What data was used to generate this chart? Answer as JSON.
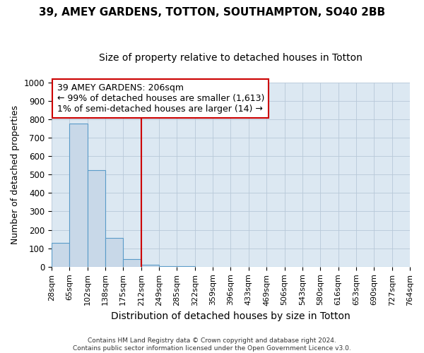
{
  "title1": "39, AMEY GARDENS, TOTTON, SOUTHAMPTON, SO40 2BB",
  "title2": "Size of property relative to detached houses in Totton",
  "xlabel": "Distribution of detached houses by size in Totton",
  "ylabel": "Number of detached properties",
  "footer1": "Contains HM Land Registry data © Crown copyright and database right 2024.",
  "footer2": "Contains public sector information licensed under the Open Government Licence v3.0.",
  "bin_labels": [
    "28sqm",
    "65sqm",
    "102sqm",
    "138sqm",
    "175sqm",
    "212sqm",
    "249sqm",
    "285sqm",
    "322sqm",
    "359sqm",
    "396sqm",
    "433sqm",
    "469sqm",
    "506sqm",
    "543sqm",
    "580sqm",
    "616sqm",
    "653sqm",
    "690sqm",
    "727sqm",
    "764sqm"
  ],
  "bar_values": [
    130,
    775,
    525,
    155,
    40,
    10,
    5,
    2,
    1,
    1,
    0,
    1,
    0,
    0,
    0,
    0,
    0,
    0,
    0,
    0
  ],
  "bar_color": "#c8d8e8",
  "bar_edge_color": "#5a9bc8",
  "red_line_index": 5,
  "annotation_line1": "39 AMEY GARDENS: 206sqm",
  "annotation_line2": "← 99% of detached houses are smaller (1,613)",
  "annotation_line3": "1% of semi-detached houses are larger (14) →",
  "annotation_box_color": "#ffffff",
  "annotation_edge_color": "#cc0000",
  "red_line_color": "#cc0000",
  "ylim": [
    0,
    1000
  ],
  "yticks": [
    0,
    100,
    200,
    300,
    400,
    500,
    600,
    700,
    800,
    900,
    1000
  ],
  "grid_color": "#b8c8d8",
  "plot_bg_color": "#dce8f2",
  "title1_fontsize": 11,
  "title2_fontsize": 10,
  "xlabel_fontsize": 10,
  "ylabel_fontsize": 9,
  "annotation_fontsize": 9
}
